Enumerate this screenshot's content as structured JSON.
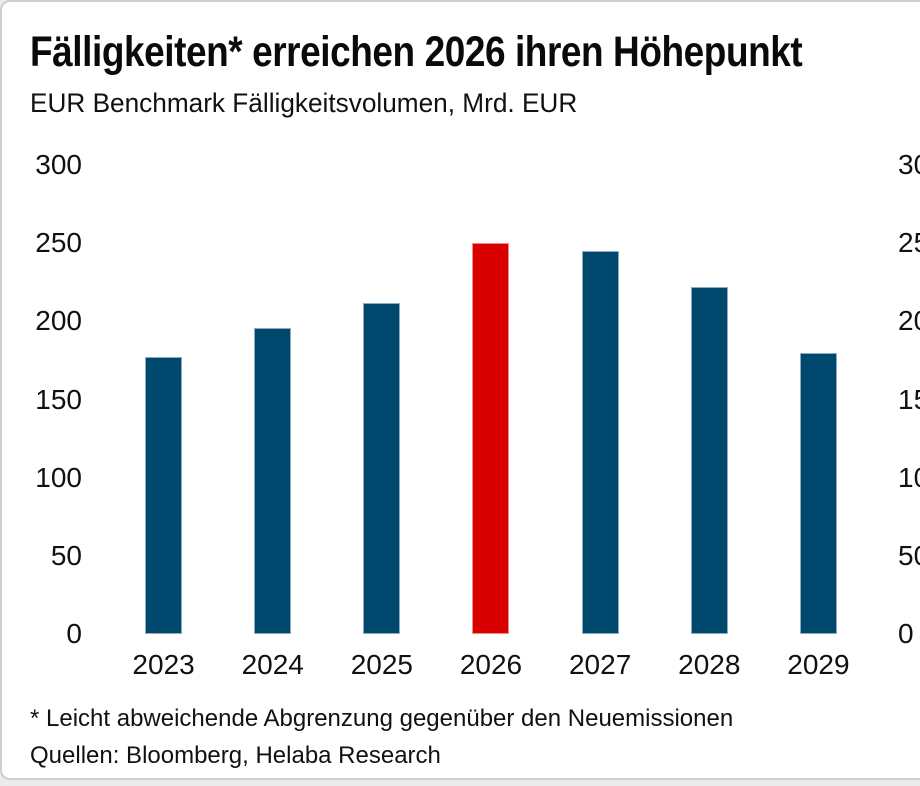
{
  "card": {
    "title": "Fälligkeiten* erreichen 2026 ihren Höhepunkt",
    "subtitle": "EUR Benchmark Fälligkeitsvolumen, Mrd. EUR",
    "footnote": "* Leicht abweichende Abgrenzung gegenüber den Neuemissionen",
    "sources": "Quellen: Bloomberg, Helaba Research"
  },
  "colors": {
    "bar_blue": "#00486E",
    "bar_highlight_red": "#D90000",
    "bar_edge": "rgba(255,255,255,0.55)",
    "text": "#111111",
    "card_border": "#cfcfcf",
    "page_background": "#ebebeb"
  },
  "chart_data": {
    "type": "bar",
    "title": "Fälligkeiten* erreichen 2026 ihren Höhepunkt",
    "subtitle": "EUR Benchmark Fälligkeitsvolumen, Mrd. EUR",
    "xlabel": "",
    "ylabel": "EUR Benchmark Fälligkeitsvolumen, Mrd. EUR",
    "categories": [
      "2023",
      "2024",
      "2025",
      "2026",
      "2027",
      "2028",
      "2029"
    ],
    "values": [
      177,
      196,
      212,
      250,
      245,
      222,
      180
    ],
    "highlight_category": "2026",
    "ylim": [
      0,
      300
    ],
    "y_ticks": [
      300,
      250,
      200,
      150,
      100,
      50,
      0
    ],
    "y_tick_step": 50,
    "y_axis_sides": "both",
    "grid": false,
    "legend": "none",
    "footnote": "* Leicht abweichende Abgrenzung gegenüber den Neuemissionen",
    "sources": "Quellen: Bloomberg, Helaba Research"
  }
}
